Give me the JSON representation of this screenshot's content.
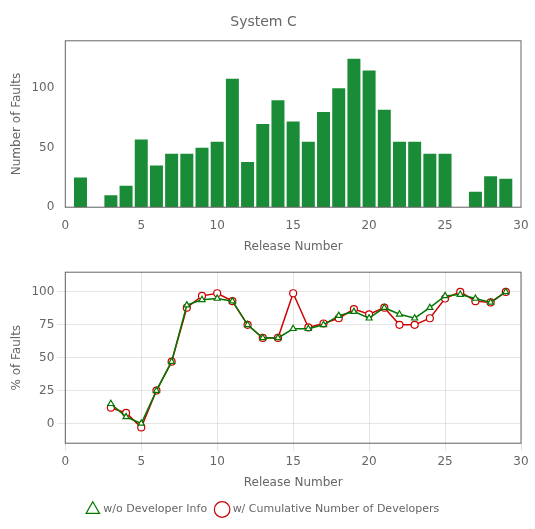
{
  "chart_data": [
    {
      "type": "bar",
      "title": "System C",
      "x": [
        1,
        3,
        4,
        5,
        6,
        7,
        8,
        9,
        10,
        11,
        12,
        13,
        14,
        15,
        16,
        17,
        18,
        19,
        20,
        21,
        22,
        23,
        24,
        25,
        27,
        28,
        29
      ],
      "values": [
        25,
        10,
        18,
        57,
        35,
        45,
        45,
        50,
        55,
        108,
        38,
        70,
        90,
        72,
        55,
        80,
        100,
        125,
        115,
        82,
        55,
        55,
        45,
        45,
        13,
        26,
        24
      ],
      "color": "#1a8c38",
      "xlabel": "Release Number",
      "ylabel": "Number of Faults",
      "xlim": [
        0,
        30
      ],
      "ylim": [
        0,
        140
      ],
      "xticks": [
        0,
        5,
        10,
        15,
        20,
        25,
        30
      ],
      "yticks": [
        0,
        50,
        100
      ],
      "grid": false
    },
    {
      "type": "line",
      "x": [
        3,
        4,
        5,
        6,
        7,
        8,
        9,
        10,
        11,
        12,
        13,
        14,
        15,
        16,
        17,
        18,
        19,
        20,
        21,
        22,
        23,
        24,
        25,
        26,
        27,
        28,
        29
      ],
      "series": [
        {
          "name": "w/o Developer Info",
          "color": "#007700",
          "marker": "triangle",
          "values": [
            15,
            5,
            0,
            25,
            47,
            90,
            94,
            95,
            93,
            75,
            65,
            65,
            72,
            72,
            75,
            82,
            85,
            80,
            88,
            83,
            80,
            88,
            97,
            98,
            95,
            92,
            100
          ]
        },
        {
          "name": "w/ Cumulative Number of Developers",
          "color": "#cc0000",
          "marker": "circle",
          "values": [
            12,
            8,
            -3,
            25,
            47,
            88,
            97,
            99,
            93,
            75,
            65,
            65,
            99,
            73,
            76,
            80,
            87,
            83,
            88,
            75,
            75,
            80,
            95,
            100,
            93,
            92,
            100
          ]
        }
      ],
      "xlabel": "Release Number",
      "ylabel": "% of Faults",
      "xlim": [
        0,
        30
      ],
      "ylim": [
        -15,
        115
      ],
      "xticks": [
        0,
        5,
        10,
        15,
        20,
        25,
        30
      ],
      "yticks": [
        0,
        25,
        50,
        75,
        100
      ],
      "grid": true,
      "legend": "bottom"
    }
  ]
}
